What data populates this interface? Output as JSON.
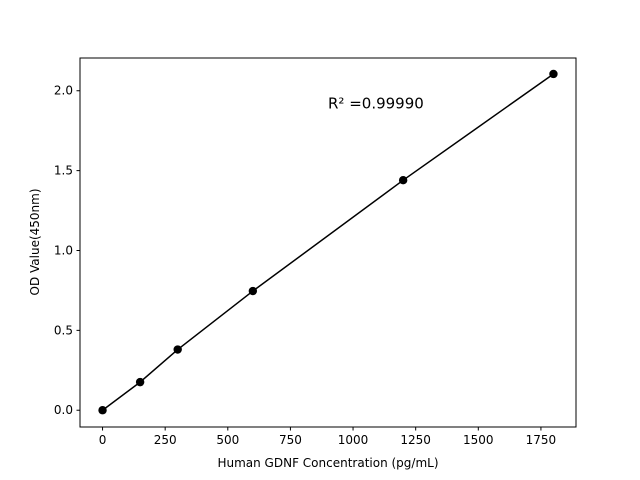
{
  "chart_data": {
    "type": "line",
    "title": "",
    "xlabel": "Human GDNF Concentration (pg/mL)",
    "ylabel": "OD Value(450nm)",
    "xlim": [
      -90,
      1890
    ],
    "ylim": [
      -0.105,
      2.205
    ],
    "xticks": [
      0,
      250,
      500,
      750,
      1000,
      1250,
      1500,
      1750
    ],
    "xtick_labels": [
      "0",
      "250",
      "500",
      "750",
      "1000",
      "1250",
      "1500",
      "1750"
    ],
    "yticks": [
      0.0,
      0.5,
      1.0,
      1.5,
      2.0
    ],
    "ytick_labels": [
      "0.0",
      "0.5",
      "1.0",
      "1.5",
      "2.0"
    ],
    "grid": false,
    "series": [
      {
        "x": [
          0,
          150,
          300,
          600,
          1200,
          1800
        ],
        "y": [
          0.0,
          0.176,
          0.38,
          0.746,
          1.44,
          2.105
        ],
        "color": "#000000",
        "marker": "circle"
      }
    ],
    "annotation": {
      "text": "R² =0.99990",
      "x": 900,
      "y": 1.89
    }
  }
}
